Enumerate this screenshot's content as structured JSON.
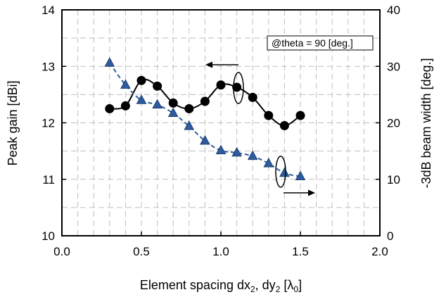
{
  "chart_data": {
    "type": "line",
    "title": "",
    "annotation": "@theta = 90 [deg.]",
    "x_axis": {
      "label_main": "Element spacing dx",
      "label_sub1": "2",
      "label_mid": ", dy",
      "label_sub2": "2",
      "label_open": " [λ",
      "label_sub3": "0",
      "label_close": "]",
      "range": [
        0.0,
        2.0
      ],
      "ticks": [
        "0.0",
        "0.5",
        "1.0",
        "1.5",
        "2.0"
      ],
      "tick_values": [
        0.0,
        0.5,
        1.0,
        1.5,
        2.0
      ]
    },
    "y_axis_left": {
      "label": "Peak gain [dBi]",
      "range": [
        10,
        14
      ],
      "ticks": [
        "10",
        "11",
        "12",
        "13",
        "14"
      ],
      "tick_values": [
        10,
        11,
        12,
        13,
        14
      ]
    },
    "y_axis_right": {
      "label": "-3dB beam width [deg.]",
      "range": [
        0,
        40
      ],
      "ticks": [
        "0",
        "10",
        "20",
        "30",
        "40"
      ],
      "tick_values": [
        0,
        10,
        20,
        30,
        40
      ]
    },
    "grid": true,
    "series": [
      {
        "axis": "left",
        "marker": "circle",
        "color": "#000000",
        "line_style": "solid",
        "x": [
          0.3,
          0.4,
          0.5,
          0.6,
          0.7,
          0.8,
          0.9,
          1.0,
          1.1,
          1.2,
          1.3,
          1.4,
          1.5
        ],
        "values": [
          12.25,
          12.3,
          12.75,
          12.65,
          12.35,
          12.25,
          12.38,
          12.67,
          12.63,
          12.45,
          12.13,
          11.95,
          12.13
        ]
      },
      {
        "axis": "right",
        "marker": "triangle",
        "color": "#2e5c9e",
        "line_style": "dashed",
        "x": [
          0.3,
          0.4,
          0.5,
          0.6,
          0.7,
          0.8,
          0.9,
          1.0,
          1.1,
          1.2,
          1.3,
          1.4,
          1.5
        ],
        "values": [
          30.6,
          26.7,
          24.0,
          23.2,
          21.7,
          19.4,
          16.8,
          15.1,
          14.7,
          14.1,
          12.8,
          11.1,
          10.5
        ]
      }
    ]
  }
}
